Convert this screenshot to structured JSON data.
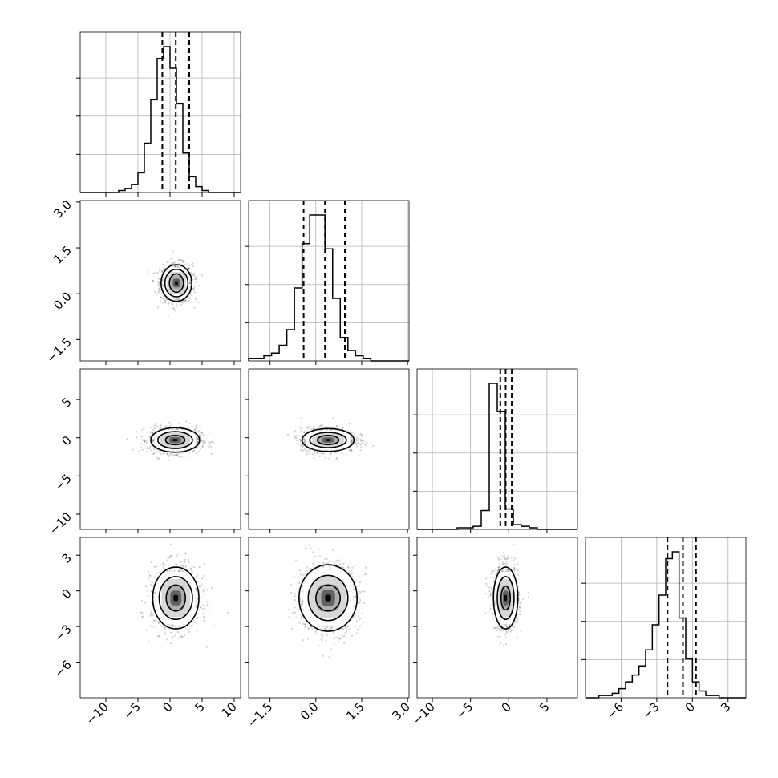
{
  "chart_data": {
    "type": "corner",
    "n_params": 4,
    "axis_limits": [
      [
        -14,
        11
      ],
      [
        -2.2,
        3.05
      ],
      [
        -12,
        9
      ],
      [
        -9,
        4.5
      ]
    ],
    "x_ticks": [
      [
        -10,
        -5,
        0,
        5,
        10
      ],
      [
        -1.5,
        0.0,
        1.5,
        3.0
      ],
      [
        -10,
        -5,
        0,
        5
      ],
      [
        -6,
        -3,
        0,
        3
      ]
    ],
    "x_tick_labels": [
      [
        "−10",
        "−5",
        "0",
        "5",
        "10"
      ],
      [
        "−1.5",
        "0.0",
        "1.5",
        "3.0"
      ],
      [
        "−10",
        "−5",
        "0",
        "5"
      ],
      [
        "−6",
        "−3",
        "0",
        "3"
      ]
    ],
    "y_tick_labels": [
      [],
      [
        "3.0",
        "1.5",
        "0.0",
        "−1.5"
      ],
      [
        "5",
        "0",
        "−5",
        "−10"
      ],
      [
        "3",
        "0",
        "−3",
        "−6"
      ]
    ],
    "y_ticks": [
      [],
      [
        3.0,
        1.5,
        0.0,
        -1.5
      ],
      [
        5,
        0,
        -5,
        -10
      ],
      [
        3,
        0,
        -3,
        -6
      ]
    ],
    "quantiles": [
      [
        -1.2,
        0.9,
        3.0
      ],
      [
        -0.4,
        0.3,
        0.95
      ],
      [
        -1.1,
        -0.4,
        0.4
      ],
      [
        -2.1,
        -0.8,
        0.3
      ]
    ],
    "histograms": [
      {
        "edges_min": -14,
        "edges_max": 11,
        "bins": 25,
        "counts": [
          0,
          0,
          0,
          0,
          0,
          0,
          1,
          2,
          4,
          10,
          25,
          47,
          68,
          74,
          63,
          45,
          20,
          8,
          3,
          1,
          0,
          0,
          0,
          0,
          0
        ]
      },
      {
        "edges_min": -2.2,
        "edges_max": 3.05,
        "bins": 21,
        "counts": [
          1,
          1,
          2,
          3,
          6,
          12,
          28,
          45,
          56,
          56,
          43,
          24,
          9,
          4,
          2,
          1,
          0,
          0,
          0,
          0,
          0
        ]
      },
      {
        "edges_min": -12,
        "edges_max": 9,
        "bins": 20,
        "counts": [
          0,
          0,
          0,
          0,
          0,
          1,
          1,
          2,
          12,
          93,
          75,
          13,
          3,
          2,
          1,
          0,
          0,
          0,
          0,
          0
        ]
      },
      {
        "edges_min": -9,
        "edges_max": 4.5,
        "bins": 24,
        "counts": [
          0,
          0,
          1,
          1,
          2,
          4,
          7,
          10,
          14,
          21,
          32,
          45,
          61,
          64,
          35,
          17,
          7,
          3,
          1,
          1,
          0,
          0,
          0,
          0
        ]
      }
    ],
    "pairs": [
      {
        "x": 0,
        "y": 1,
        "center": [
          1.0,
          0.35
        ],
        "contours": [
          [
            2.4,
            0.6
          ],
          [
            1.8,
            0.45
          ],
          [
            1.1,
            0.3
          ]
        ]
      },
      {
        "x": 0,
        "y": 2,
        "center": [
          0.8,
          -0.3
        ],
        "contours": [
          [
            3.8,
            1.6
          ],
          [
            2.7,
            1.1
          ],
          [
            1.5,
            0.6
          ]
        ]
      },
      {
        "x": 1,
        "y": 2,
        "center": [
          0.4,
          -0.3
        ],
        "contours": [
          [
            0.85,
            1.5
          ],
          [
            0.6,
            1.0
          ],
          [
            0.35,
            0.6
          ]
        ]
      },
      {
        "x": 0,
        "y": 3,
        "center": [
          0.9,
          -0.6
        ],
        "contours": [
          [
            3.6,
            2.6
          ],
          [
            2.6,
            1.8
          ],
          [
            1.5,
            1.1
          ]
        ]
      },
      {
        "x": 1,
        "y": 3,
        "center": [
          0.4,
          -0.6
        ],
        "contours": [
          [
            0.95,
            2.8
          ],
          [
            0.65,
            1.9
          ],
          [
            0.4,
            1.1
          ]
        ]
      },
      {
        "x": 2,
        "y": 3,
        "center": [
          -0.4,
          -0.6
        ],
        "contours": [
          [
            1.6,
            2.6
          ],
          [
            1.1,
            1.8
          ],
          [
            0.6,
            1.0
          ]
        ]
      }
    ],
    "grid": true,
    "title": "",
    "xlabel": "",
    "ylabel": ""
  }
}
